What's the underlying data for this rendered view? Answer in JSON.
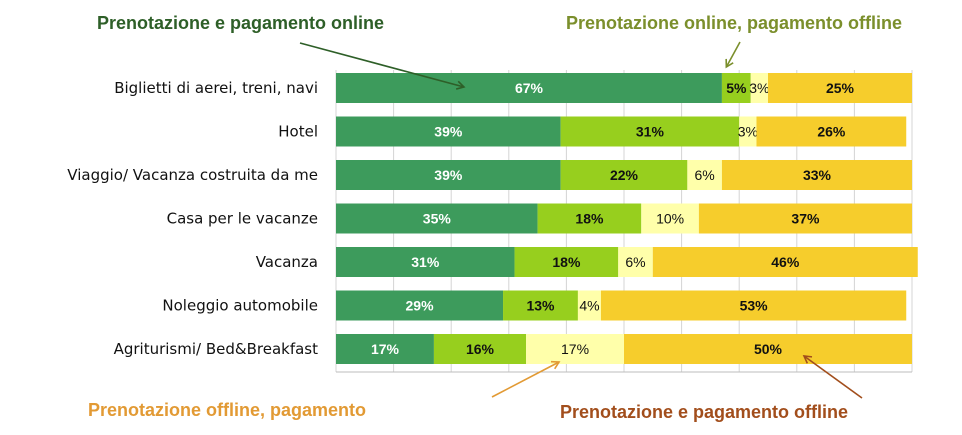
{
  "chart_data": {
    "type": "bar",
    "orientation": "horizontal",
    "stacked": true,
    "percent_scale": true,
    "xlim": [
      0,
      100
    ],
    "categories": [
      "Biglietti di aerei, treni, navi",
      "Hotel",
      "Viaggio/ Vacanza costruita da me",
      "Casa per le vacanze",
      "Vacanza",
      "Noleggio automobile",
      "Agriturismi/ Bed&Breakfast"
    ],
    "series": [
      {
        "name": "Prenotazione e pagamento online",
        "color": "#3d9b5c",
        "label_color": "#ffffff",
        "bold": true,
        "values": [
          67,
          39,
          39,
          35,
          31,
          29,
          17
        ]
      },
      {
        "name": "Prenotazione online, pagamento offline",
        "color": "#97cf1e",
        "label_color": "#111111",
        "bold": true,
        "values": [
          5,
          31,
          22,
          18,
          18,
          13,
          16
        ]
      },
      {
        "name": "Prenotazione offline, pagamento",
        "color": "#ffffaa",
        "label_color": "#111111",
        "bold": false,
        "values": [
          3,
          3,
          6,
          10,
          6,
          4,
          17
        ]
      },
      {
        "name": "Prenotazione  e pagamento offline",
        "color": "#f6cd2c",
        "label_color": "#111111",
        "bold": true,
        "values": [
          25,
          26,
          33,
          37,
          46,
          53,
          50
        ]
      }
    ],
    "annotations": [
      {
        "text": "Prenotazione e pagamento online",
        "color": "#2e5f28",
        "series": 0
      },
      {
        "text": "Prenotazione online, pagamento offline",
        "color": "#7b8f2c",
        "series": 1
      },
      {
        "text": "Prenotazione offline, pagamento",
        "color": "#e29a34",
        "series": 2
      },
      {
        "text": "Prenotazione  e pagamento offline",
        "color": "#a24e1c",
        "series": 3
      }
    ],
    "grid": true,
    "legend": "none"
  }
}
